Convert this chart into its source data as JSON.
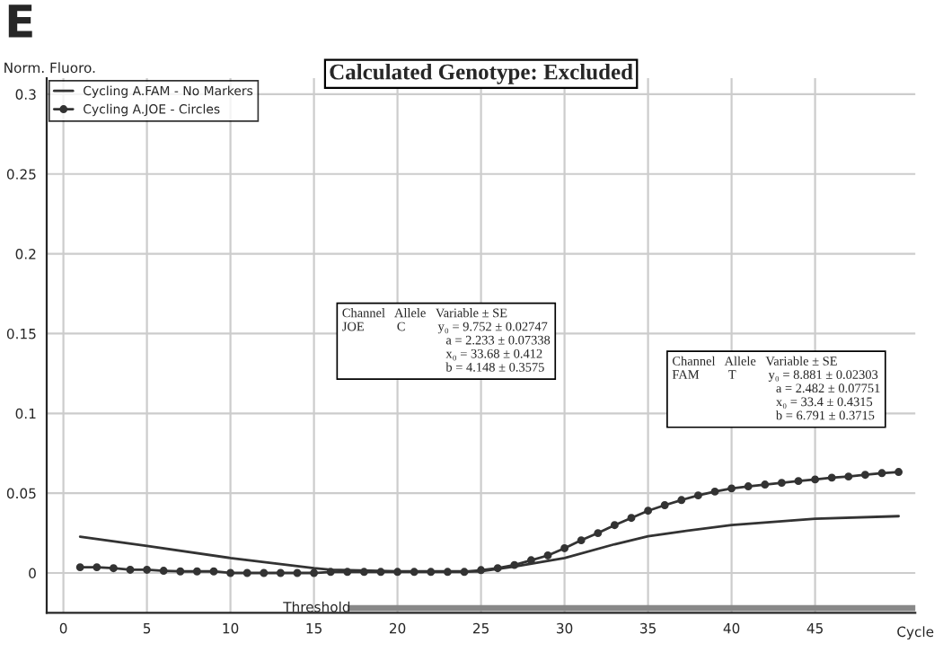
{
  "chart_data": {
    "type": "line",
    "title": "Calculated Genotype: Excluded",
    "xlabel": "Cycle",
    "ylabel": "Norm. Fluoro.",
    "x": [
      1,
      2,
      3,
      4,
      5,
      6,
      7,
      8,
      9,
      10,
      11,
      12,
      13,
      14,
      15,
      16,
      17,
      18,
      19,
      20,
      21,
      22,
      23,
      24,
      25,
      26,
      27,
      28,
      29,
      30,
      31,
      32,
      33,
      34,
      35,
      36,
      37,
      38,
      39,
      40,
      41,
      42,
      43,
      44,
      45,
      46,
      47,
      48,
      49,
      50
    ],
    "series": [
      {
        "name": "Cycling A.FAM - No Markers",
        "color": "#333333",
        "marker": "none",
        "x": [
          1,
          5,
          10,
          15,
          16,
          20,
          25,
          27,
          30,
          33,
          35,
          37,
          40,
          45,
          50
        ],
        "values": [
          0.0227,
          0.017,
          0.0094,
          0.003,
          0.002,
          0.001,
          0.001,
          0.004,
          0.0094,
          0.018,
          0.023,
          0.026,
          0.03,
          0.034,
          0.0356
        ]
      },
      {
        "name": "Cycling A.JOE - Circles",
        "color": "#333333",
        "marker": "circle",
        "values": [
          0.0036,
          0.0036,
          0.003,
          0.002,
          0.002,
          0.0014,
          0.001,
          0.001,
          0.001,
          0,
          0,
          0,
          0,
          0,
          0,
          0.0007,
          0.0007,
          0.0007,
          0.0007,
          0.0007,
          0.0007,
          0.0007,
          0.0007,
          0.0007,
          0.0018,
          0.003,
          0.005,
          0.008,
          0.011,
          0.0155,
          0.0205,
          0.025,
          0.03,
          0.0345,
          0.039,
          0.0425,
          0.0457,
          0.0486,
          0.051,
          0.053,
          0.0543,
          0.0554,
          0.0565,
          0.0576,
          0.0586,
          0.0597,
          0.0604,
          0.0615,
          0.0626,
          0.0633
        ]
      }
    ],
    "xlim": [
      -1,
      51
    ],
    "ylim": [
      -0.025,
      0.31
    ],
    "xticks": [
      0,
      5,
      10,
      15,
      20,
      25,
      30,
      35,
      40,
      45
    ],
    "yticks": [
      0,
      0.05,
      0.1,
      0.15,
      0.2,
      0.25,
      0.3
    ],
    "ref_lines": [
      {
        "axis": "y",
        "value": -0.022,
        "label": "Threshold",
        "color": "#888888"
      }
    ],
    "grid": true,
    "legend": "top left",
    "annotations": [
      "E",
      "Channel   Allele   Variable ± SE\nJOE          C          y₀ = 9.752 ± 0.02747\n                                a = 2.233 ± 0.07338\n                                x₀ = 33.68 ± 0.412\n                                b = 4.148 ± 0.3575",
      "Channel   Allele   Variable ± SE\nFAM         T          y₀ = 8.881 ± 0.02303\n                                a = 2.482 ± 0.07751\n                                x₀ = 33.4 ± 0.4315\n                                b = 6.791 ± 0.3715"
    ]
  }
}
